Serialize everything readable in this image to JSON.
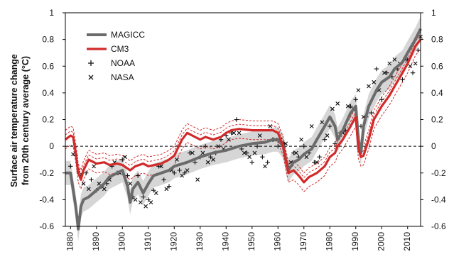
{
  "chart_data": {
    "type": "line",
    "ylabel": [
      "Surface air temperature change",
      "from 20th century average (°C)"
    ],
    "xlim": [
      1878,
      2015
    ],
    "ylim": [
      -0.6,
      1.0
    ],
    "x_ticks": [
      1880,
      1890,
      1900,
      1910,
      1920,
      1930,
      1940,
      1950,
      1960,
      1970,
      1980,
      1990,
      2000,
      2010
    ],
    "y_ticks": [
      1,
      0.8,
      0.6,
      0.4,
      0.2,
      0,
      -0.2,
      -0.4,
      -0.6
    ],
    "y_tick_labels": [
      "1",
      "0.8",
      "0.6",
      "0.4",
      "0.2",
      "0",
      "-0.2",
      "-0.4",
      "-0.6"
    ],
    "zero_line": "dashed",
    "legend_position": "top-left",
    "colors": {
      "magicc": "#6b6b6b",
      "magicc_band": "#d6d6d6",
      "cm3": "#d12a2a",
      "obs": "#111111"
    },
    "legend": [
      {
        "label": "MAGICC",
        "marker": "line",
        "color": "#6b6b6b"
      },
      {
        "label": "CM3",
        "marker": "line",
        "color": "#d12a2a"
      },
      {
        "label": "NOAA",
        "marker": "plus",
        "color": "#111111"
      },
      {
        "label": "NASA",
        "marker": "cross",
        "color": "#111111"
      }
    ],
    "series": [
      {
        "name": "MAGICC",
        "type": "line",
        "x": [
          1878,
          1880,
          1882,
          1883,
          1884,
          1885,
          1887,
          1890,
          1893,
          1895,
          1898,
          1900,
          1902,
          1903,
          1904,
          1906,
          1908,
          1910,
          1912,
          1915,
          1918,
          1920,
          1925,
          1930,
          1935,
          1940,
          1945,
          1950,
          1955,
          1958,
          1960,
          1962,
          1963,
          1964,
          1966,
          1968,
          1970,
          1973,
          1975,
          1978,
          1980,
          1982,
          1983,
          1985,
          1988,
          1990,
          1991,
          1992,
          1993,
          1995,
          1998,
          2000,
          2003,
          2005,
          2008,
          2010,
          2013,
          2015
        ],
        "y": [
          -0.2,
          -0.2,
          -0.45,
          -0.62,
          -0.45,
          -0.4,
          -0.38,
          -0.33,
          -0.28,
          -0.23,
          -0.2,
          -0.18,
          -0.3,
          -0.42,
          -0.32,
          -0.27,
          -0.35,
          -0.28,
          -0.22,
          -0.2,
          -0.18,
          -0.15,
          -0.12,
          -0.08,
          -0.05,
          -0.03,
          0.0,
          0.02,
          0.03,
          0.05,
          0.05,
          0.0,
          -0.1,
          -0.18,
          -0.12,
          -0.1,
          -0.06,
          -0.02,
          0.05,
          0.15,
          0.22,
          0.15,
          0.05,
          0.12,
          0.25,
          0.3,
          0.05,
          -0.05,
          0.15,
          0.3,
          0.42,
          0.48,
          0.52,
          0.58,
          0.63,
          0.7,
          0.8,
          0.88
        ]
      },
      {
        "name": "CM3",
        "type": "line",
        "x": [
          1878,
          1880,
          1881,
          1882,
          1883,
          1884,
          1885,
          1887,
          1890,
          1893,
          1895,
          1898,
          1900,
          1903,
          1905,
          1908,
          1910,
          1915,
          1918,
          1920,
          1923,
          1925,
          1928,
          1930,
          1932,
          1935,
          1938,
          1940,
          1942,
          1945,
          1950,
          1955,
          1958,
          1960,
          1962,
          1963,
          1964,
          1966,
          1968,
          1970,
          1972,
          1975,
          1978,
          1980,
          1982,
          1983,
          1985,
          1988,
          1990,
          1991,
          1992,
          1993,
          1995,
          1997,
          2000,
          2003,
          2005,
          2008,
          2010,
          2013,
          2015
        ],
        "y": [
          0.05,
          0.08,
          0.07,
          -0.05,
          -0.2,
          -0.25,
          -0.18,
          -0.1,
          -0.13,
          -0.12,
          -0.14,
          -0.13,
          -0.14,
          -0.18,
          -0.15,
          -0.13,
          -0.15,
          -0.13,
          -0.1,
          -0.07,
          0.05,
          0.1,
          0.07,
          0.05,
          0.07,
          0.05,
          0.07,
          0.1,
          0.12,
          0.13,
          0.12,
          0.12,
          0.12,
          0.1,
          0.0,
          -0.1,
          -0.2,
          -0.18,
          -0.22,
          -0.27,
          -0.23,
          -0.2,
          -0.15,
          -0.08,
          -0.05,
          0.0,
          0.05,
          0.15,
          0.22,
          -0.02,
          -0.08,
          -0.07,
          0.05,
          0.2,
          0.3,
          0.38,
          0.45,
          0.55,
          0.62,
          0.75,
          0.8
        ]
      }
    ],
    "observations": {
      "NOAA": {
        "x": [
          1880,
          1882,
          1884,
          1886,
          1888,
          1890,
          1892,
          1894,
          1896,
          1898,
          1900,
          1902,
          1904,
          1906,
          1908,
          1910,
          1912,
          1914,
          1916,
          1918,
          1920,
          1922,
          1924,
          1926,
          1928,
          1930,
          1932,
          1934,
          1936,
          1938,
          1940,
          1942,
          1944,
          1946,
          1948,
          1950,
          1952,
          1954,
          1956,
          1958,
          1960,
          1962,
          1964,
          1966,
          1968,
          1970,
          1972,
          1974,
          1976,
          1978,
          1980,
          1982,
          1984,
          1986,
          1988,
          1990,
          1992,
          1994,
          1996,
          1998,
          2000,
          2002,
          2004,
          2006,
          2008,
          2010,
          2012,
          2014
        ],
        "y": [
          -0.15,
          -0.07,
          -0.22,
          -0.2,
          -0.25,
          -0.33,
          -0.3,
          -0.28,
          -0.15,
          -0.2,
          -0.1,
          -0.22,
          -0.38,
          -0.22,
          -0.38,
          -0.4,
          -0.33,
          -0.15,
          -0.25,
          -0.3,
          -0.2,
          -0.18,
          -0.2,
          -0.05,
          -0.12,
          -0.08,
          0.0,
          -0.08,
          -0.05,
          0.05,
          0.08,
          0.1,
          0.2,
          -0.02,
          -0.05,
          -0.12,
          0.0,
          -0.08,
          -0.12,
          0.05,
          0.0,
          0.02,
          -0.15,
          -0.05,
          -0.08,
          0.0,
          -0.05,
          -0.12,
          -0.08,
          0.05,
          0.15,
          0.02,
          0.1,
          0.12,
          0.3,
          0.35,
          0.15,
          0.22,
          0.25,
          0.58,
          0.35,
          0.55,
          0.52,
          0.58,
          0.5,
          0.65,
          0.55,
          0.72
        ]
      },
      "NASA": {
        "x": [
          1881,
          1883,
          1885,
          1887,
          1889,
          1891,
          1893,
          1895,
          1897,
          1899,
          1901,
          1903,
          1905,
          1907,
          1909,
          1911,
          1913,
          1915,
          1917,
          1919,
          1921,
          1923,
          1925,
          1927,
          1929,
          1931,
          1933,
          1935,
          1937,
          1939,
          1941,
          1943,
          1945,
          1947,
          1949,
          1951,
          1953,
          1955,
          1957,
          1959,
          1961,
          1963,
          1965,
          1967,
          1969,
          1971,
          1973,
          1975,
          1977,
          1979,
          1981,
          1983,
          1985,
          1987,
          1989,
          1991,
          1993,
          1995,
          1997,
          1999,
          2001,
          2003,
          2005,
          2007,
          2009,
          2011,
          2013,
          2015
        ],
        "y": [
          -0.06,
          -0.18,
          -0.28,
          -0.32,
          -0.15,
          -0.28,
          -0.32,
          -0.25,
          -0.12,
          -0.2,
          -0.08,
          -0.28,
          -0.4,
          -0.42,
          -0.45,
          -0.42,
          -0.35,
          -0.15,
          -0.32,
          -0.18,
          -0.1,
          -0.22,
          -0.18,
          -0.05,
          -0.25,
          -0.05,
          -0.12,
          -0.1,
          0.0,
          -0.02,
          0.05,
          0.1,
          0.1,
          -0.05,
          -0.08,
          -0.05,
          0.08,
          -0.15,
          0.15,
          0.05,
          0.05,
          0.02,
          -0.12,
          -0.05,
          0.05,
          -0.08,
          0.15,
          -0.12,
          0.18,
          0.08,
          0.28,
          0.32,
          0.1,
          0.3,
          0.28,
          0.42,
          0.22,
          0.45,
          0.48,
          0.42,
          0.55,
          0.62,
          0.65,
          0.62,
          0.65,
          0.6,
          0.62,
          0.82
        ]
      }
    }
  }
}
